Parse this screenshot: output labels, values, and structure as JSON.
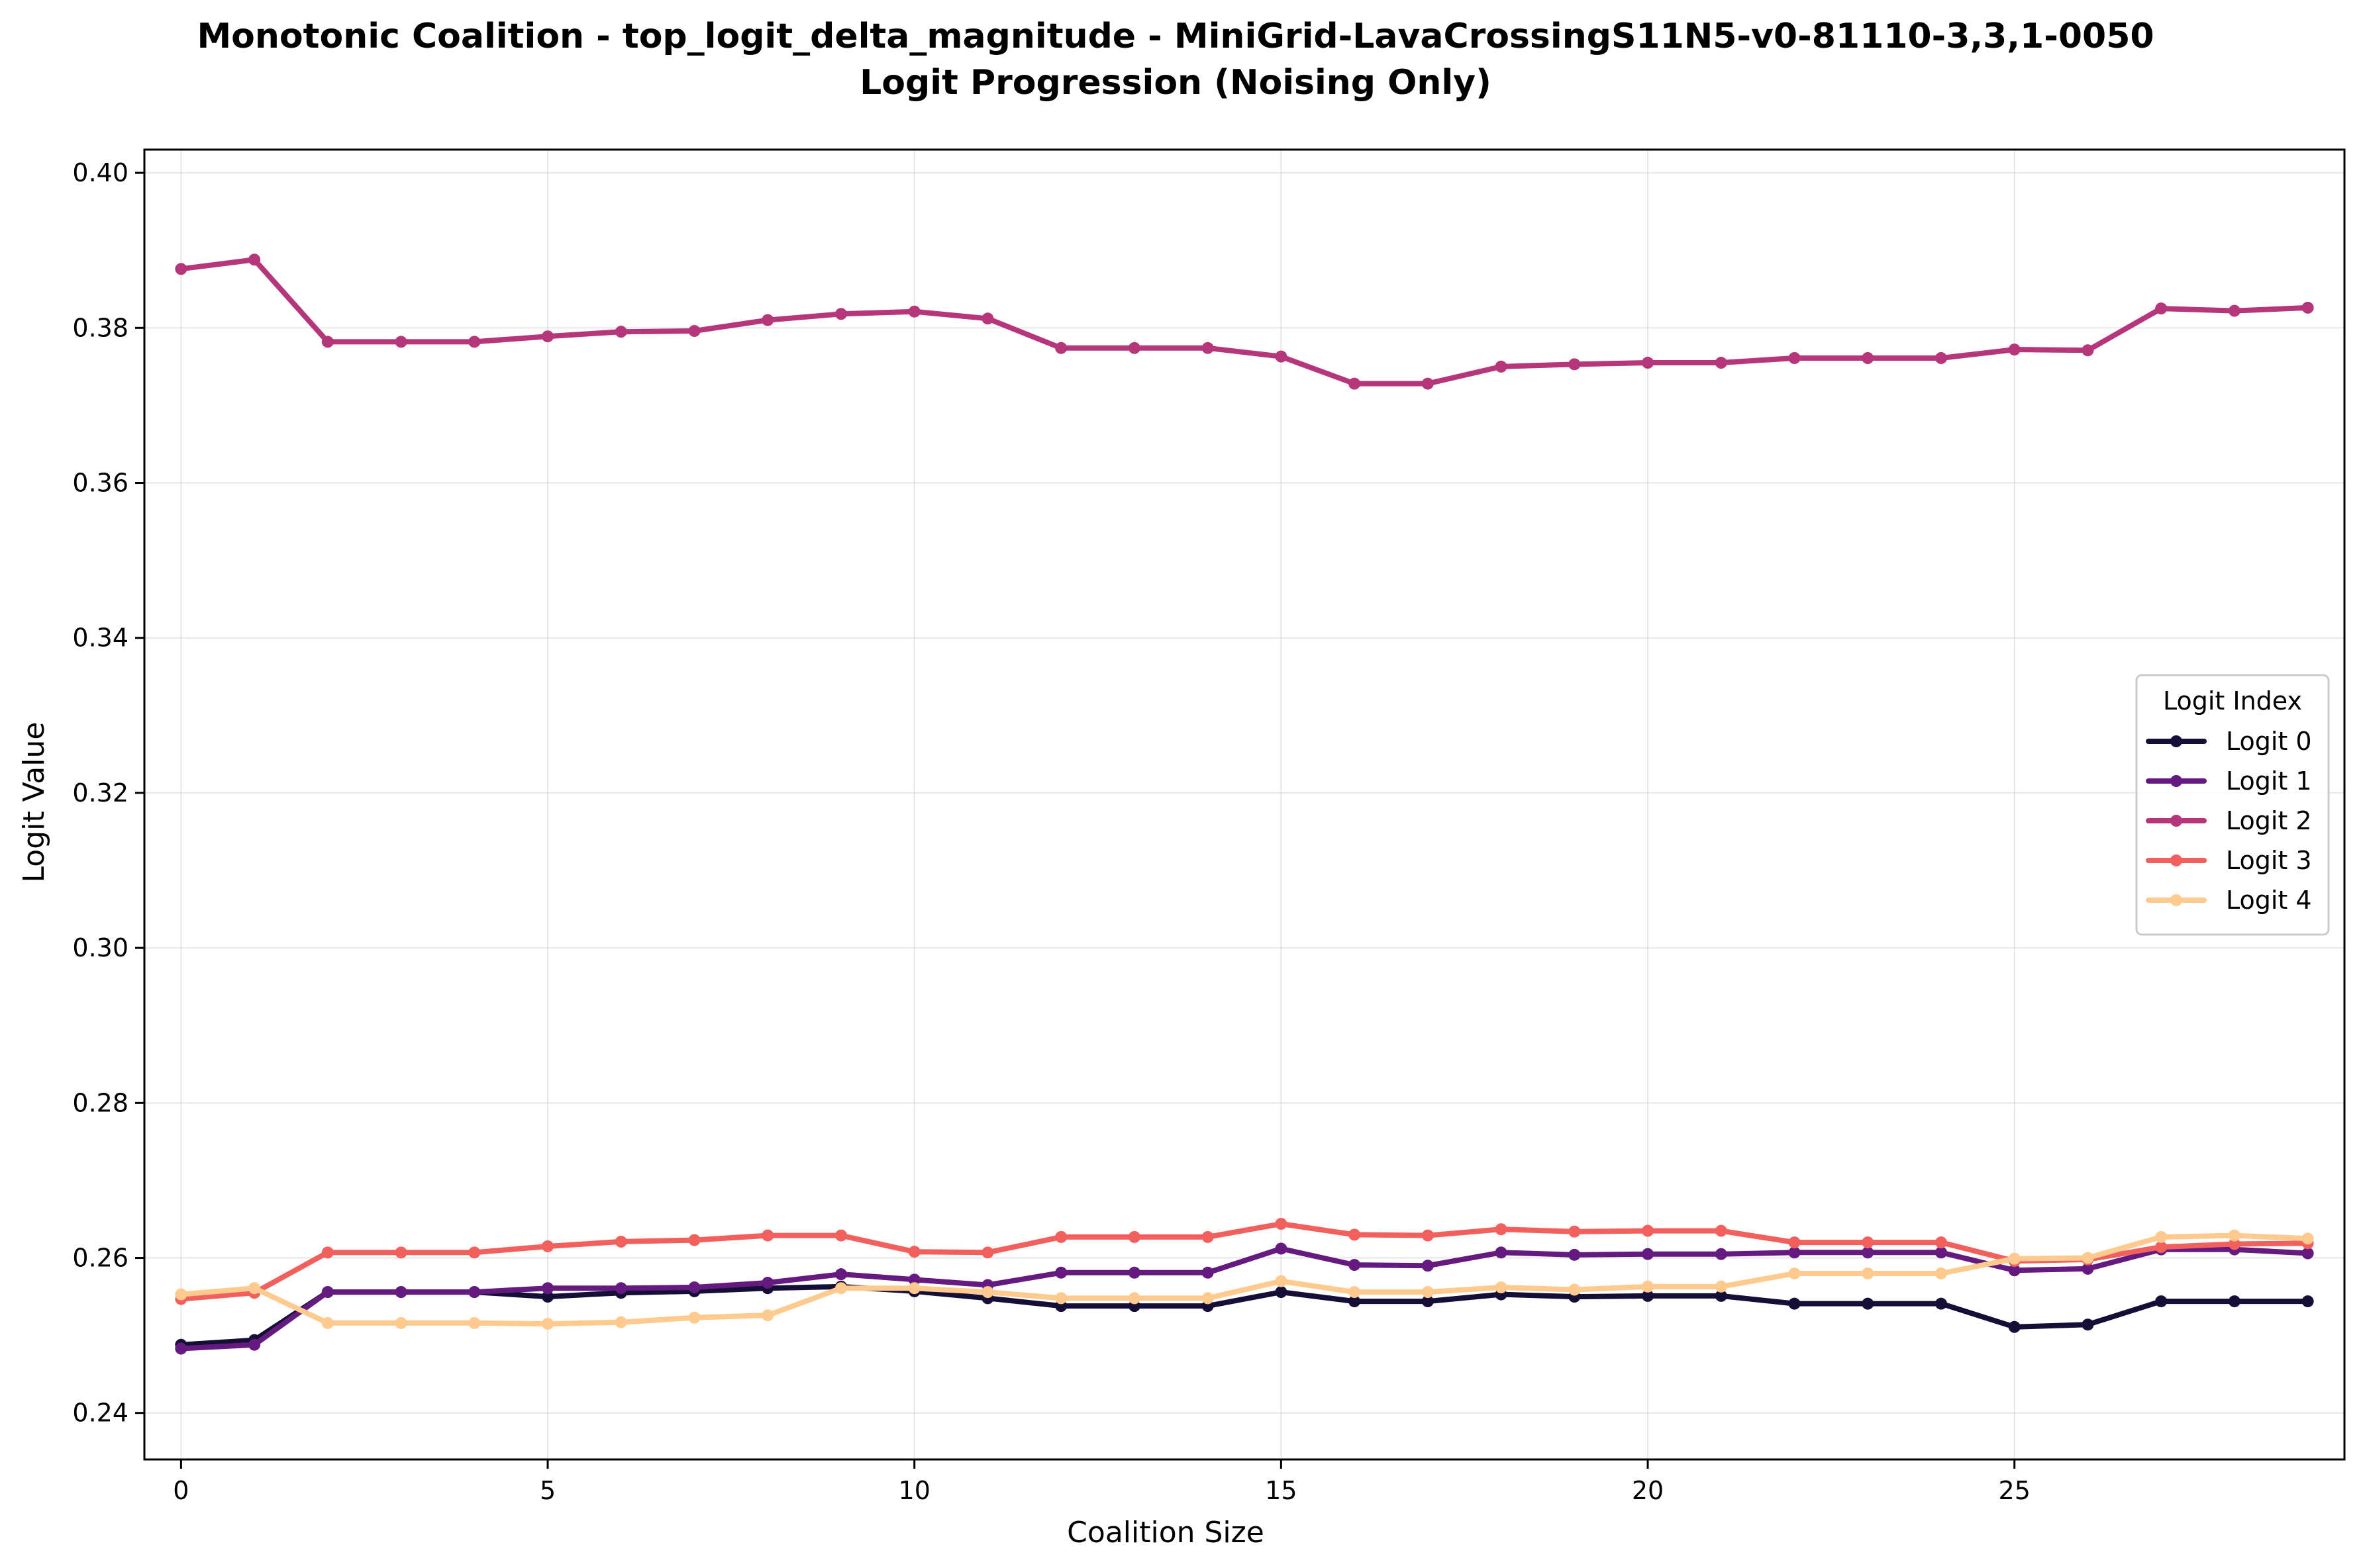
{
  "chart_data": {
    "type": "line",
    "title": "Monotonic Coalition - top_logit_delta_magnitude - MiniGrid-LavaCrossingS11N5-v0-81110-3,3,1-0050",
    "subtitle": "Logit Progression (Noising Only)",
    "xlabel": "Coalition Size",
    "ylabel": "Logit Value",
    "xlim": [
      -0.5,
      29.5
    ],
    "ylim": [
      0.234,
      0.403
    ],
    "xticks": [
      0,
      5,
      10,
      15,
      20,
      25
    ],
    "xtick_labels": [
      "0",
      "5",
      "10",
      "15",
      "20",
      "25"
    ],
    "yticks": [
      0.24,
      0.26,
      0.28,
      0.3,
      0.32,
      0.34,
      0.36,
      0.38,
      0.4
    ],
    "ytick_labels": [
      "0.24",
      "0.26",
      "0.28",
      "0.30",
      "0.32",
      "0.34",
      "0.36",
      "0.38",
      "0.40"
    ],
    "grid": true,
    "legend": {
      "title": "Logit Index",
      "placement": "center-right"
    },
    "x": [
      0,
      1,
      2,
      3,
      4,
      5,
      6,
      7,
      8,
      9,
      10,
      11,
      12,
      13,
      14,
      15,
      16,
      17,
      18,
      19,
      20,
      21,
      22,
      23,
      24,
      25,
      26,
      27,
      28,
      29
    ],
    "series": [
      {
        "name": "Logit 0",
        "color": "#150e37",
        "values": [
          0.2488,
          0.2494,
          0.2556,
          0.2556,
          0.2556,
          0.255,
          0.2555,
          0.2557,
          0.2561,
          0.2563,
          0.2557,
          0.2548,
          0.2538,
          0.2538,
          0.2538,
          0.2556,
          0.2544,
          0.2544,
          0.2553,
          0.255,
          0.2551,
          0.2551,
          0.2541,
          0.2541,
          0.2541,
          0.2511,
          0.2514,
          0.2544,
          0.2544,
          0.2544
        ]
      },
      {
        "name": "Logit 1",
        "color": "#651a80",
        "values": [
          0.2483,
          0.2488,
          0.2556,
          0.2556,
          0.2556,
          0.2561,
          0.2561,
          0.2562,
          0.2568,
          0.2579,
          0.2572,
          0.2565,
          0.2581,
          0.2581,
          0.2581,
          0.2612,
          0.2591,
          0.259,
          0.2607,
          0.2604,
          0.2605,
          0.2605,
          0.2607,
          0.2607,
          0.2607,
          0.2584,
          0.2586,
          0.2611,
          0.2611,
          0.2606
        ]
      },
      {
        "name": "Logit 2",
        "color": "#b5367a",
        "values": [
          0.3876,
          0.3888,
          0.3782,
          0.3782,
          0.3782,
          0.3789,
          0.3795,
          0.3796,
          0.381,
          0.3818,
          0.3821,
          0.3812,
          0.3774,
          0.3774,
          0.3774,
          0.3763,
          0.3728,
          0.3728,
          0.375,
          0.3753,
          0.3755,
          0.3755,
          0.3761,
          0.3761,
          0.3761,
          0.3772,
          0.3771,
          0.3825,
          0.3822,
          0.3826
        ]
      },
      {
        "name": "Logit 3",
        "color": "#f1605d",
        "values": [
          0.2547,
          0.2555,
          0.2607,
          0.2607,
          0.2607,
          0.2615,
          0.2621,
          0.2623,
          0.2629,
          0.2629,
          0.2608,
          0.2607,
          0.2627,
          0.2627,
          0.2627,
          0.2644,
          0.263,
          0.2629,
          0.2637,
          0.2634,
          0.2635,
          0.2635,
          0.262,
          0.262,
          0.262,
          0.2596,
          0.2598,
          0.2614,
          0.2618,
          0.2619
        ]
      },
      {
        "name": "Logit 4",
        "color": "#feca8d",
        "values": [
          0.2553,
          0.2561,
          0.2516,
          0.2516,
          0.2516,
          0.2515,
          0.2517,
          0.2523,
          0.2526,
          0.2561,
          0.2561,
          0.2556,
          0.2548,
          0.2548,
          0.2548,
          0.257,
          0.2556,
          0.2556,
          0.2562,
          0.2559,
          0.2563,
          0.2563,
          0.258,
          0.258,
          0.258,
          0.2599,
          0.26,
          0.2627,
          0.2629,
          0.2625
        ]
      }
    ]
  }
}
